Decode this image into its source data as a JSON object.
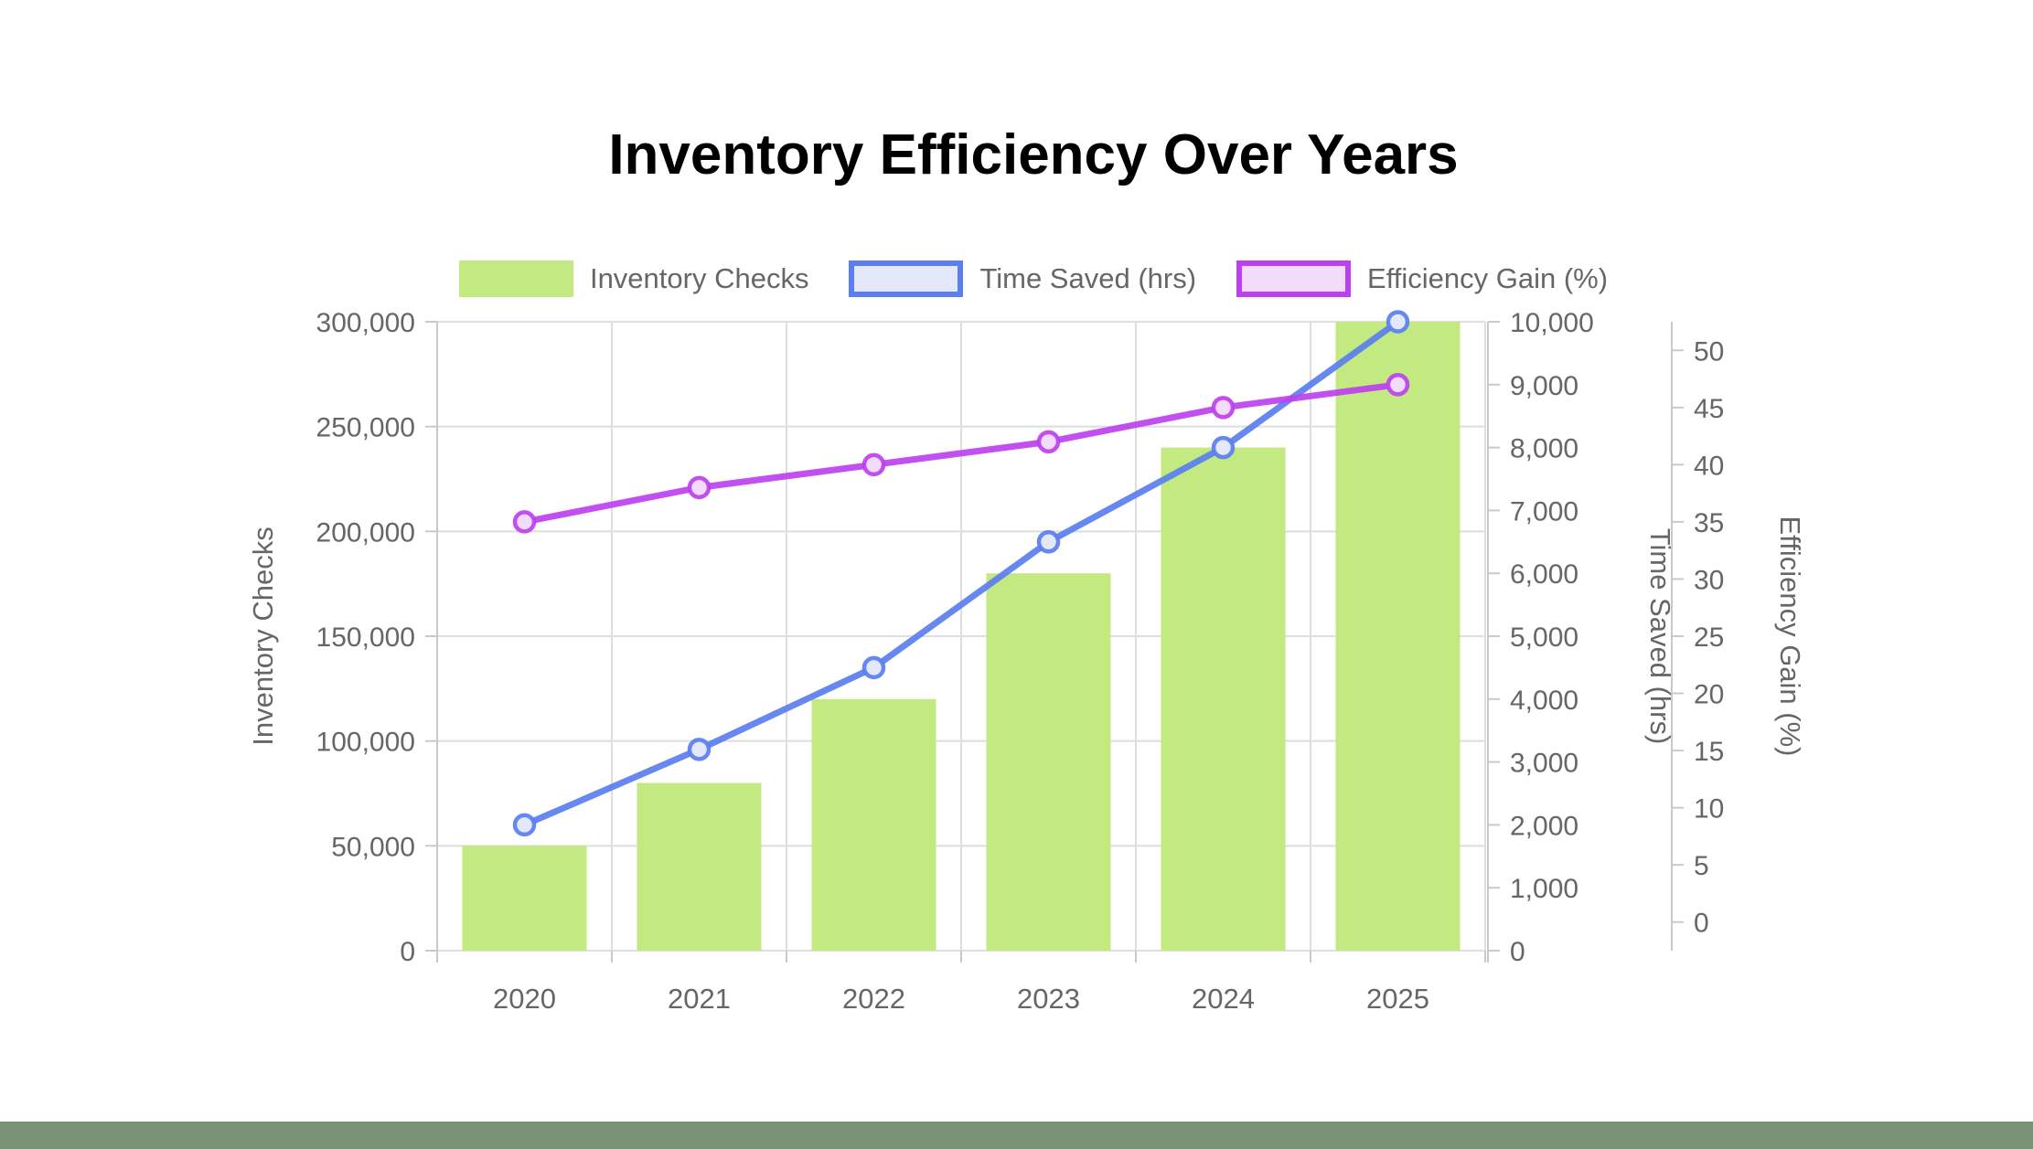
{
  "title": "Inventory Efficiency Over Years",
  "chart_data": {
    "type": "mixed-bar-line",
    "title": "Inventory Efficiency Over Years",
    "categories": [
      "2020",
      "2021",
      "2022",
      "2023",
      "2024",
      "2025"
    ],
    "series": [
      {
        "name": "Inventory Checks",
        "type": "bar",
        "yAxis": "left",
        "values": [
          50000,
          80000,
          120000,
          180000,
          240000,
          300000
        ],
        "color": "#c2ea80"
      },
      {
        "name": "Time Saved (hrs)",
        "type": "line",
        "yAxis": "right1",
        "values": [
          2000,
          3200,
          4500,
          6500,
          8000,
          10000
        ],
        "color": "#5b7ef0",
        "marker_fill": "#e3e9fb"
      },
      {
        "name": "Efficiency Gain (%)",
        "type": "line",
        "yAxis": "right2",
        "values": [
          35,
          38,
          40,
          42,
          45,
          47
        ],
        "color": "#bd40ee",
        "marker_fill": "#f3dcfb"
      }
    ],
    "axes": {
      "left": {
        "title": "Inventory Checks",
        "min": 0,
        "max": 300000,
        "tick_values": [
          0,
          50000,
          100000,
          150000,
          200000,
          250000,
          300000
        ],
        "tick_labels": [
          "0",
          "50,000",
          "100,000",
          "150,000",
          "200,000",
          "250,000",
          "300,000"
        ]
      },
      "right1": {
        "title": "Time Saved (hrs)",
        "min": 0,
        "max": 10000,
        "tick_values": [
          0,
          1000,
          2000,
          3000,
          4000,
          5000,
          6000,
          7000,
          8000,
          9000,
          10000
        ],
        "tick_labels": [
          "0",
          "1,000",
          "2,000",
          "3,000",
          "4,000",
          "5,000",
          "6,000",
          "7,000",
          "8,000",
          "9,000",
          "10,000"
        ]
      },
      "right2": {
        "title": "Efficiency Gain (%)",
        "display_min": -2.5,
        "display_max": 52.5,
        "tick_values": [
          0,
          5,
          10,
          15,
          20,
          25,
          30,
          35,
          40,
          45,
          50
        ],
        "tick_labels": [
          "0",
          "5",
          "10",
          "15",
          "20",
          "25",
          "30",
          "35",
          "40",
          "45",
          "50"
        ]
      }
    },
    "legend_position": "top",
    "grid": true
  },
  "colors": {
    "background": "#ffffff",
    "grid_line": "#dedede",
    "axis_line": "#c9c9c9",
    "tick_text": "#666666",
    "title_text": "#000000",
    "footer_bar": "#7b9176"
  }
}
